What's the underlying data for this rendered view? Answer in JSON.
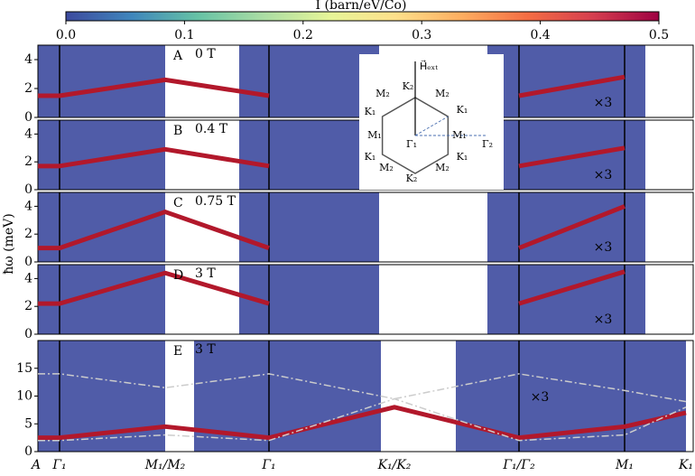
{
  "chart_data": {
    "type": "line",
    "colorbar": {
      "title": "I (barn/eV/Co)",
      "lim": [
        0,
        0.5
      ],
      "ticks": [
        {
          "value": 0,
          "label": "0.0"
        },
        0.1,
        0.2,
        0.3,
        0.4,
        0.5
      ],
      "colormap": [
        "#3d4a9e",
        "#3f86bc",
        "#66c2a5",
        "#abdda4",
        "#e6f598",
        "#fee08b",
        "#fdae61",
        "#f46d43",
        "#d53e4f",
        "#9e0142"
      ]
    },
    "y_label": "ħω (meV)",
    "categories": [
      "A",
      "Γ₁",
      "M₁/M₂",
      "Γ₁",
      "K₁/K₂",
      "Γ₁/Γ₂",
      "M₁",
      "K₁"
    ],
    "panels": [
      {
        "label": "A",
        "field": "0 T",
        "scale_label": "×3",
        "ylim": [
          0,
          5
        ],
        "yticks": [
          0,
          2,
          4
        ],
        "series": [
          {
            "color": "#b2182b",
            "values": [
              1.5,
              1.5,
              2.6,
              1.5,
              null,
              1.5,
              2.8,
              null
            ]
          }
        ]
      },
      {
        "label": "B",
        "field": "0.4 T",
        "scale_label": "×3",
        "ylim": [
          0,
          5
        ],
        "yticks": [
          0,
          2,
          4
        ],
        "series": [
          {
            "color": "#b2182b",
            "values": [
              1.7,
              1.7,
              2.9,
              1.7,
              null,
              1.7,
              3.0,
              null
            ]
          }
        ]
      },
      {
        "label": "C",
        "field": "0.75 T",
        "scale_label": "×3",
        "ylim": [
          0,
          5
        ],
        "yticks": [
          0,
          2,
          4
        ],
        "series": [
          {
            "color": "#b2182b",
            "values": [
              1.0,
              1.0,
              3.6,
              1.0,
              null,
              1.0,
              4.0,
              null
            ]
          }
        ]
      },
      {
        "label": "D",
        "field": "3 T",
        "scale_label": "×3",
        "ylim": [
          0,
          5
        ],
        "yticks": [
          0,
          2,
          4
        ],
        "series": [
          {
            "color": "#b2182b",
            "values": [
              2.2,
              2.2,
              4.4,
              2.2,
              null,
              2.2,
              4.5,
              null
            ]
          }
        ]
      },
      {
        "label": "E",
        "field": "3 T",
        "scale_label": "×3",
        "ylim": [
          0,
          20
        ],
        "yticks": [
          0,
          5,
          10,
          15
        ],
        "series": [
          {
            "color": "#b2182b",
            "values": [
              2.5,
              2.5,
              4.5,
              2.5,
              8,
              2.5,
              4.5,
              7
            ]
          },
          {
            "color": "#cccccc",
            "dash": true,
            "values": [
              14,
              14,
              11.5,
              14,
              9.5,
              14,
              11,
              9
            ]
          },
          {
            "color": "#cccccc",
            "dash": true,
            "values": [
              2,
              2,
              3,
              2,
              9.5,
              2,
              3,
              8
            ]
          }
        ]
      }
    ],
    "inset": {
      "field": "H⃗ₑₓₜ",
      "labels": [
        "M₂",
        "K₂",
        "M₂",
        "K₁",
        "K₁",
        "M₁",
        "Γ₁",
        "M₁",
        "Γ₂",
        "K₁",
        "K₁",
        "M₂",
        "M₂",
        "K₂"
      ]
    }
  }
}
